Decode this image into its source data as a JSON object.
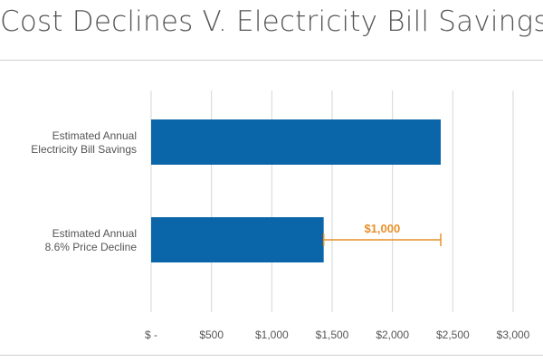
{
  "chart_data": {
    "type": "bar",
    "orientation": "horizontal",
    "title": "Cost Declines V. Electricity Bill Savings",
    "categories": [
      [
        "Estimated Annual",
        "Electricity Bill Savings"
      ],
      [
        "Estimated Annual",
        "8.6% Price Decline"
      ]
    ],
    "values": [
      2400,
      1430
    ],
    "xlim": [
      0,
      3000
    ],
    "ticks": [
      0,
      500,
      1000,
      1500,
      2000,
      2500,
      3000
    ],
    "tick_labels": [
      "$ -",
      "$500",
      "$1,000",
      "$1,500",
      "$2,000",
      "$2,500",
      "$3,000"
    ],
    "grid": true,
    "annotation": {
      "label": "$1,000",
      "from": 1430,
      "to": 2400,
      "category_index": 1
    },
    "colors": {
      "bar": "#0a66a8",
      "annotation": "#e8902a",
      "grid": "#d6d6d6"
    }
  }
}
